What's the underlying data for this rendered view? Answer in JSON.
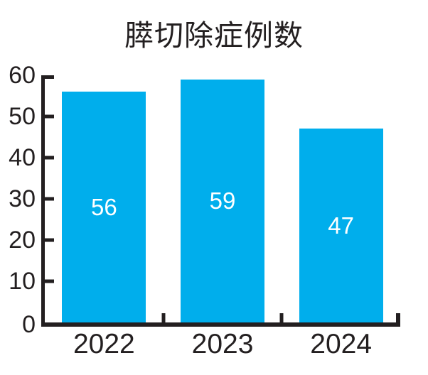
{
  "colors": {
    "bar": "#00AEEC",
    "axis": "#231F20",
    "text": "#231F20",
    "bar_label": "#FFFFFF"
  },
  "chart_data": {
    "type": "bar",
    "title": "膵切除症例数",
    "categories": [
      "2022",
      "2023",
      "2024"
    ],
    "values": [
      56,
      59,
      47
    ],
    "bar_labels": [
      "56",
      "59",
      "47"
    ],
    "xlabel": "",
    "ylabel": "",
    "ylim": [
      0,
      60
    ],
    "yticks": [
      0,
      10,
      20,
      30,
      40,
      50,
      60
    ],
    "grid": false,
    "legend": "none",
    "bar_label_position": "inside-center"
  }
}
